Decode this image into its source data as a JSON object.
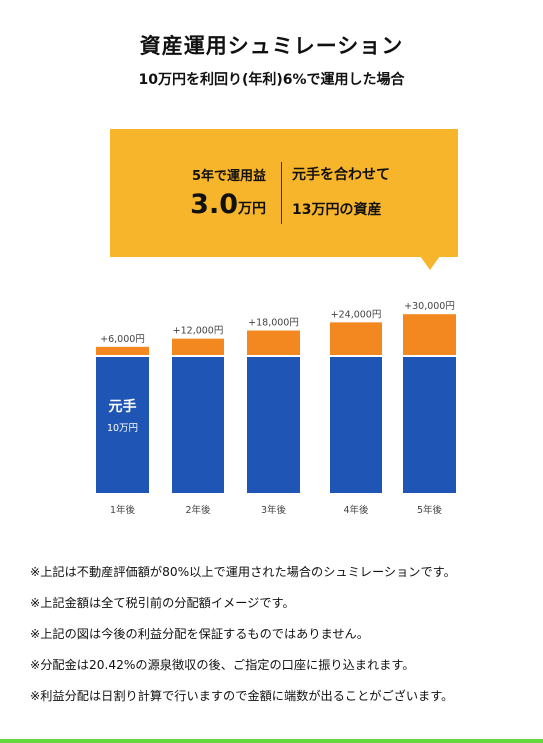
{
  "header": {
    "title": "資産運用シュミレーション",
    "subtitle": "10万円を利回り(年利)6%で運用した場合"
  },
  "callout": {
    "profit_label": "5年で運用益",
    "profit_number": "3.0",
    "profit_unit": "万円",
    "total_line1": "元手を合わせて",
    "total_line2": "13万円の資産"
  },
  "chart_data": {
    "type": "bar",
    "stacked": true,
    "categories": [
      "1年後",
      "2年後",
      "3年後",
      "4年後",
      "5年後"
    ],
    "series": [
      {
        "name": "元手",
        "values": [
          100000,
          100000,
          100000,
          100000,
          100000
        ],
        "color": "#1f56b5"
      },
      {
        "values": [
          6000,
          12000,
          18000,
          24000,
          30000
        ],
        "color": "#f2881f"
      }
    ],
    "principal_label": "元手",
    "principal_value_label": "10万円",
    "data_labels": [
      "+6,000円",
      "+12,000円",
      "+18,000円",
      "+24,000円",
      "+30,000円"
    ]
  },
  "notes": [
    "※上記は不動産評価額が80%以上で運用された場合のシュミレーションです。",
    "※上記金額は全て税引前の分配額イメージです。",
    "※上記の図は今後の利益分配を保証するものではありません。",
    "※分配金は20.42%の源泉徴収の後、ご指定の口座に振り込まれます。",
    "※利益分配は日割り計算で行いますので金額に端数が出ることがございます。"
  ],
  "colors": {
    "callout": "#f7b52c",
    "accent_bar": "#63d83f"
  }
}
